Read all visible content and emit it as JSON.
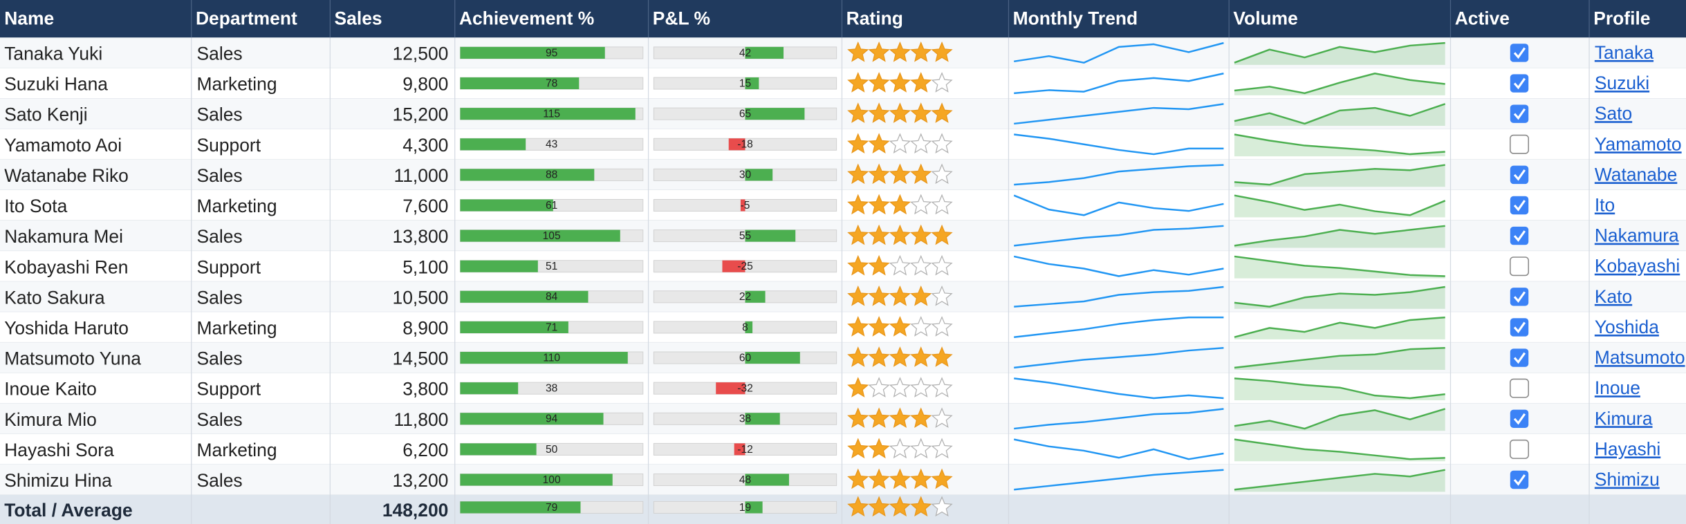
{
  "table": {
    "columns": [
      "Name",
      "Department",
      "Sales",
      "Achievement %",
      "P&L %",
      "Rating",
      "Monthly Trend",
      "Volume",
      "Active",
      "Profile"
    ],
    "achievement_scale": [
      0,
      120
    ],
    "pnl_scale": [
      -100,
      100
    ],
    "rating_max": 5,
    "rows": [
      {
        "name": "Tanaka Yuki",
        "department": "Sales",
        "sales": "12,500",
        "achievement": 95,
        "pnl": 42,
        "rating": 5,
        "trend": [
          25,
          45,
          20,
          80,
          90,
          60,
          95
        ],
        "volume": [
          20,
          70,
          40,
          80,
          60,
          85,
          95
        ],
        "active": true,
        "profile": "Tanaka"
      },
      {
        "name": "Suzuki Hana",
        "department": "Marketing",
        "sales": "9,800",
        "achievement": 78,
        "pnl": 15,
        "rating": 4,
        "trend": [
          30,
          40,
          35,
          70,
          80,
          70,
          95
        ],
        "volume": [
          30,
          45,
          20,
          60,
          95,
          70,
          55
        ],
        "active": true,
        "profile": "Suzuki"
      },
      {
        "name": "Sato Kenji",
        "department": "Sales",
        "sales": "15,200",
        "achievement": 115,
        "pnl": 65,
        "rating": 5,
        "trend": [
          20,
          35,
          50,
          65,
          80,
          75,
          95
        ],
        "volume": [
          30,
          60,
          20,
          70,
          80,
          50,
          95
        ],
        "active": true,
        "profile": "Sato"
      },
      {
        "name": "Yamamoto Aoi",
        "department": "Support",
        "sales": "4,300",
        "achievement": 43,
        "pnl": -18,
        "rating": 2,
        "trend": [
          95,
          80,
          60,
          40,
          25,
          45,
          45
        ],
        "volume": [
          95,
          70,
          50,
          40,
          30,
          15,
          25
        ],
        "active": false,
        "profile": "Yamamoto"
      },
      {
        "name": "Watanabe Riko",
        "department": "Sales",
        "sales": "11,000",
        "achievement": 88,
        "pnl": 30,
        "rating": 4,
        "trend": [
          20,
          30,
          45,
          70,
          80,
          90,
          95
        ],
        "volume": [
          30,
          20,
          60,
          70,
          80,
          75,
          95
        ],
        "active": true,
        "profile": "Watanabe"
      },
      {
        "name": "Ito Sota",
        "department": "Marketing",
        "sales": "7,600",
        "achievement": 61,
        "pnl": -5,
        "rating": 3,
        "trend": [
          95,
          45,
          25,
          70,
          50,
          40,
          65
        ],
        "volume": [
          95,
          70,
          40,
          60,
          35,
          20,
          75
        ],
        "active": true,
        "profile": "Ito"
      },
      {
        "name": "Nakamura Mei",
        "department": "Sales",
        "sales": "13,800",
        "achievement": 105,
        "pnl": 55,
        "rating": 5,
        "trend": [
          20,
          35,
          50,
          60,
          80,
          85,
          95
        ],
        "volume": [
          20,
          40,
          55,
          80,
          65,
          80,
          95
        ],
        "active": true,
        "profile": "Nakamura"
      },
      {
        "name": "Kobayashi Ren",
        "department": "Support",
        "sales": "5,100",
        "achievement": 51,
        "pnl": -25,
        "rating": 2,
        "trend": [
          95,
          70,
          55,
          30,
          50,
          35,
          55
        ],
        "volume": [
          95,
          75,
          55,
          45,
          30,
          15,
          10
        ],
        "active": false,
        "profile": "Kobayashi"
      },
      {
        "name": "Kato Sakura",
        "department": "Sales",
        "sales": "10,500",
        "achievement": 84,
        "pnl": 22,
        "rating": 4,
        "trend": [
          20,
          30,
          40,
          65,
          75,
          80,
          95
        ],
        "volume": [
          35,
          20,
          55,
          70,
          65,
          75,
          95
        ],
        "active": true,
        "profile": "Kato"
      },
      {
        "name": "Yoshida Haruto",
        "department": "Marketing",
        "sales": "8,900",
        "achievement": 71,
        "pnl": 8,
        "rating": 3,
        "trend": [
          20,
          35,
          50,
          70,
          85,
          95,
          95
        ],
        "volume": [
          20,
          55,
          40,
          75,
          55,
          85,
          95
        ],
        "active": true,
        "profile": "Yoshida"
      },
      {
        "name": "Matsumoto Yuna",
        "department": "Sales",
        "sales": "14,500",
        "achievement": 110,
        "pnl": 60,
        "rating": 5,
        "trend": [
          20,
          35,
          50,
          60,
          70,
          85,
          95
        ],
        "volume": [
          20,
          35,
          50,
          65,
          70,
          90,
          95
        ],
        "active": true,
        "profile": "Matsumoto"
      },
      {
        "name": "Inoue Kaito",
        "department": "Support",
        "sales": "3,800",
        "achievement": 38,
        "pnl": -32,
        "rating": 1,
        "trend": [
          95,
          80,
          60,
          40,
          25,
          35,
          25
        ],
        "volume": [
          95,
          85,
          70,
          60,
          30,
          20,
          35
        ],
        "active": false,
        "profile": "Inoue"
      },
      {
        "name": "Kimura Mio",
        "department": "Sales",
        "sales": "11,800",
        "achievement": 94,
        "pnl": 38,
        "rating": 4,
        "trend": [
          20,
          35,
          45,
          60,
          75,
          80,
          95
        ],
        "volume": [
          30,
          50,
          20,
          70,
          90,
          55,
          95
        ],
        "active": true,
        "profile": "Kimura"
      },
      {
        "name": "Hayashi Sora",
        "department": "Marketing",
        "sales": "6,200",
        "achievement": 50,
        "pnl": -12,
        "rating": 2,
        "trend": [
          95,
          70,
          55,
          30,
          60,
          25,
          45
        ],
        "volume": [
          95,
          75,
          55,
          45,
          30,
          15,
          20
        ],
        "active": false,
        "profile": "Hayashi"
      },
      {
        "name": "Shimizu Hina",
        "department": "Sales",
        "sales": "13,200",
        "achievement": 100,
        "pnl": 48,
        "rating": 5,
        "trend": [
          15,
          30,
          45,
          60,
          75,
          85,
          95
        ],
        "volume": [
          20,
          35,
          50,
          65,
          80,
          70,
          95
        ],
        "active": true,
        "profile": "Shimizu"
      }
    ],
    "total": {
      "label": "Total / Average",
      "sales": "148,200",
      "achievement": 79,
      "pnl": 19,
      "rating": 4
    }
  }
}
